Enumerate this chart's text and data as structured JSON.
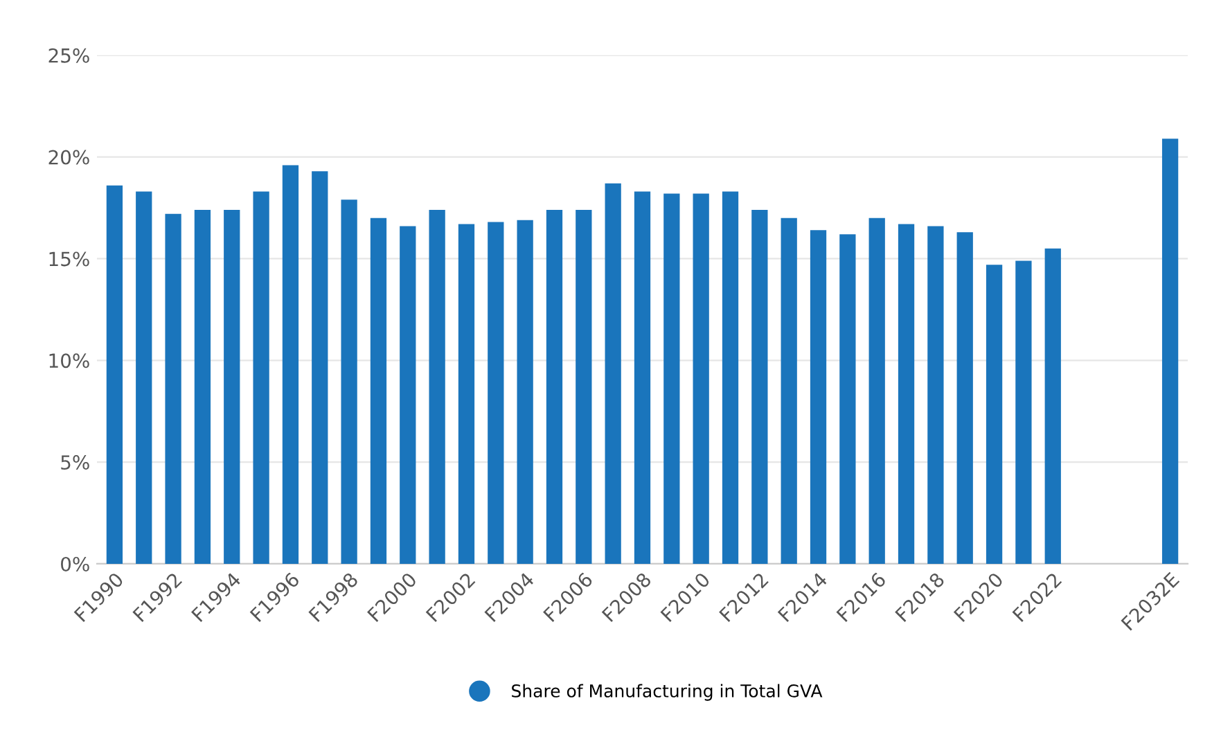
{
  "chart_data": {
    "type": "bar",
    "categories": [
      "F1990",
      null,
      "F1992",
      null,
      "F1994",
      null,
      "F1996",
      null,
      "F1998",
      null,
      "F2000",
      null,
      "F2002",
      null,
      "F2004",
      null,
      "F2006",
      null,
      "F2008",
      null,
      "F2010",
      null,
      "F2012",
      null,
      "F2014",
      null,
      "F2016",
      null,
      "F2018",
      null,
      "F2020",
      null,
      "F2022",
      null,
      null,
      null,
      "F2032E"
    ],
    "series": [
      {
        "name": "Share of Manufacturing in Total GVA",
        "color": "#1a75bc",
        "values": [
          18.6,
          18.3,
          17.2,
          17.4,
          17.4,
          18.3,
          19.6,
          19.3,
          17.9,
          17.0,
          16.6,
          17.4,
          16.7,
          16.8,
          16.9,
          17.4,
          17.4,
          18.7,
          18.3,
          18.2,
          18.2,
          18.3,
          17.4,
          17.0,
          16.4,
          16.2,
          17.0,
          16.7,
          16.6,
          16.3,
          14.7,
          14.9,
          15.5,
          null,
          null,
          null,
          20.9
        ]
      }
    ],
    "ylim": [
      0,
      25
    ],
    "yticks": [
      {
        "value": 0,
        "label": "0%"
      },
      {
        "value": 5,
        "label": "5%"
      },
      {
        "value": 10,
        "label": "10%"
      },
      {
        "value": 15,
        "label": "15%"
      },
      {
        "value": 20,
        "label": "20%"
      },
      {
        "value": 25,
        "label": "25%"
      }
    ],
    "grid": "y",
    "legend": "bottom"
  }
}
